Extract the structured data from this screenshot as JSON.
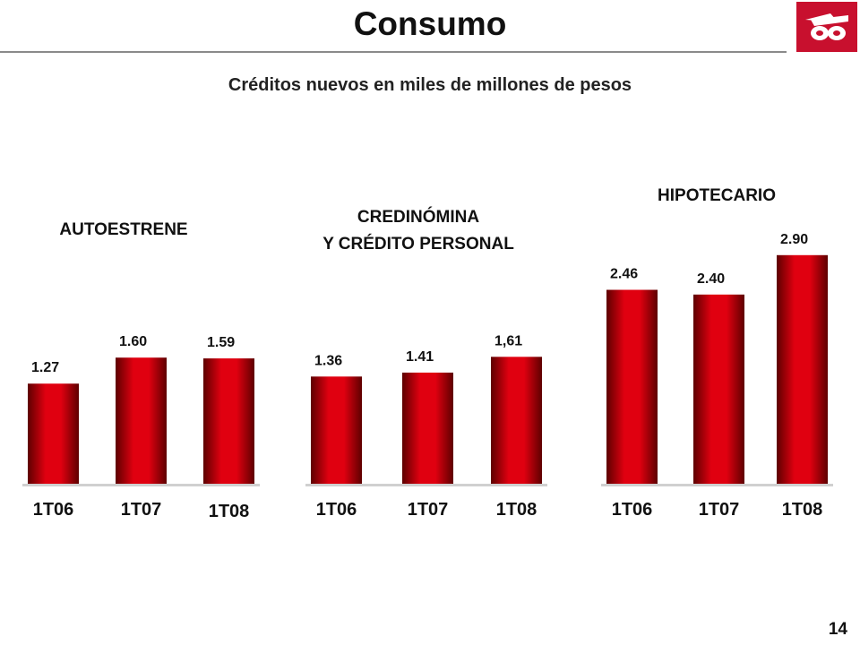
{
  "header": {
    "title": "Consumo",
    "subtitle": "Créditos nuevos en miles de millones de pesos"
  },
  "footer": {
    "page_number": "14"
  },
  "colors": {
    "bar_dark": "#5e0000",
    "bar_mid": "#e00010",
    "rule": "#8a8a8a",
    "logo": "#c8102e"
  },
  "icons": {
    "logo": "banorte-logo"
  },
  "chart_data": [
    {
      "type": "bar",
      "title_lines": [
        "AUTOESTRENE"
      ],
      "categories": [
        "1T06",
        "1T07",
        "1T08"
      ],
      "values": [
        1.27,
        1.6,
        1.59
      ],
      "value_labels": [
        "1.27",
        "1.60",
        "1.59"
      ]
    },
    {
      "type": "bar",
      "title_lines": [
        "CREDINÓMINA",
        "Y CRÉDITO PERSONAL"
      ],
      "categories": [
        "1T06",
        "1T07",
        "1T08"
      ],
      "values": [
        1.36,
        1.41,
        1.61
      ],
      "value_labels": [
        "1.36",
        "1.41",
        "1,61"
      ]
    },
    {
      "type": "bar",
      "title_lines": [
        "HIPOTECARIO"
      ],
      "categories": [
        "1T06",
        "1T07",
        "1T08"
      ],
      "values": [
        2.46,
        2.4,
        2.9
      ],
      "value_labels": [
        "2.46",
        "2.40",
        "2.90"
      ]
    }
  ]
}
